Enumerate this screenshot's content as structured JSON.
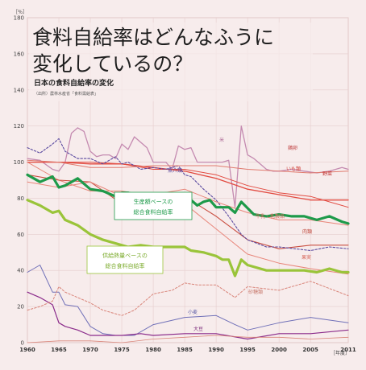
{
  "header": {
    "title_line1": "食料自給率はどんなふうに",
    "title_line2": "変化しているの？",
    "subtitle": "日本の食料自給率の変化",
    "source": "（出所）農林水産省「食料需給表」"
  },
  "chart_data": {
    "type": "line",
    "title": "日本の食料自給率の変化",
    "ylabel": "［％］",
    "xlabel": "［年度］",
    "ylim": [
      0,
      180
    ],
    "xlim": [
      1960,
      2011
    ],
    "y_ticks": [
      "0",
      "20",
      "40",
      "60",
      "80",
      "100",
      "120",
      "140",
      "160",
      "180"
    ],
    "x_ticks": [
      "1960",
      "1965",
      "1970",
      "1975",
      "1980",
      "1985",
      "1990",
      "1995",
      "2000",
      "2005",
      "2011"
    ],
    "series": [
      {
        "name": "米",
        "color": "#c48ab0",
        "style": "solid",
        "width": 1.3,
        "x": [
          1960,
          1962,
          1964,
          1965,
          1966,
          1967,
          1968,
          1969,
          1970,
          1971,
          1972,
          1973,
          1974,
          1975,
          1976,
          1977,
          1978,
          1979,
          1980,
          1981,
          1982,
          1983,
          1984,
          1985,
          1986,
          1987,
          1988,
          1989,
          1990,
          1991,
          1992,
          1993,
          1994,
          1995,
          1996,
          1997,
          1998,
          1999,
          2000,
          2002,
          2004,
          2006,
          2008,
          2010,
          2011
        ],
        "y": [
          102,
          101,
          96,
          95,
          100,
          116,
          119,
          117,
          106,
          103,
          104,
          104,
          102,
          110,
          107,
          114,
          111,
          108,
          100,
          100,
          100,
          96,
          109,
          107,
          108,
          100,
          100,
          100,
          100,
          100,
          101,
          75,
          120,
          104,
          102,
          99,
          96,
          95,
          95,
          96,
          95,
          94,
          95,
          97,
          96
        ]
      },
      {
        "name": "野菜",
        "color": "#e24a40",
        "style": "solid",
        "width": 1.3,
        "x": [
          1960,
          1965,
          1970,
          1975,
          1980,
          1985,
          1990,
          1995,
          2000,
          2005,
          2011
        ],
        "y": [
          100,
          100,
          99,
          99,
          97,
          95,
          91,
          85,
          82,
          79,
          79
        ]
      },
      {
        "name": "いも類",
        "color": "#e24a40",
        "style": "solid",
        "width": 1.0,
        "x": [
          1960,
          1965,
          1970,
          1975,
          1980,
          1985,
          1990,
          1995,
          2000,
          2005,
          2011
        ],
        "y": [
          100,
          100,
          100,
          99,
          96,
          96,
          93,
          87,
          83,
          81,
          75
        ]
      },
      {
        "name": "果実",
        "color": "#e88579",
        "style": "solid",
        "width": 1.0,
        "x": [
          1960,
          1965,
          1970,
          1975,
          1980,
          1985,
          1990,
          1995,
          2000,
          2005,
          2011
        ],
        "y": [
          100,
          90,
          84,
          84,
          81,
          77,
          63,
          49,
          44,
          41,
          38
        ]
      },
      {
        "name": "肉類",
        "color": "#c94e40",
        "style": "solid",
        "width": 1.1,
        "x": [
          1960,
          1965,
          1970,
          1975,
          1980,
          1985,
          1990,
          1995,
          2000,
          2005,
          2011
        ],
        "y": [
          93,
          90,
          89,
          77,
          80,
          81,
          70,
          57,
          52,
          54,
          54
        ]
      },
      {
        "name": "魚介類",
        "color": "#5a4aa0",
        "style": "dashed",
        "width": 1.1,
        "x": [
          1960,
          1962,
          1964,
          1965,
          1966,
          1968,
          1970,
          1972,
          1974,
          1975,
          1976,
          1978,
          1980,
          1982,
          1984,
          1985,
          1986,
          1988,
          1990,
          1992,
          1994,
          1995,
          1998,
          2000,
          2005,
          2008,
          2011
        ],
        "y": [
          108,
          105,
          110,
          113,
          106,
          102,
          102,
          99,
          103,
          99,
          100,
          96,
          97,
          96,
          98,
          93,
          92,
          85,
          79,
          70,
          60,
          57,
          53,
          53,
          51,
          53,
          52
        ]
      },
      {
        "name": "牛乳・乳製品",
        "color": "#e88579",
        "style": "solid",
        "width": 1.0,
        "x": [
          1960,
          1965,
          1970,
          1975,
          1980,
          1985,
          1990,
          1995,
          2000,
          2005,
          2011
        ],
        "y": [
          89,
          86,
          89,
          81,
          82,
          85,
          78,
          72,
          68,
          68,
          65
        ]
      },
      {
        "name": "鶏卵",
        "color": "#e07a6e",
        "style": "solid",
        "width": 1.0,
        "x": [
          1960,
          1965,
          1970,
          1975,
          1980,
          1985,
          1990,
          1995,
          2000,
          2005,
          2011
        ],
        "y": [
          101,
          100,
          97,
          97,
          98,
          98,
          98,
          96,
          95,
          94,
          95
        ]
      },
      {
        "name": "生産額ベースの総合食料自給率",
        "color": "#1e9a4a",
        "style": "solid",
        "width": 3.2,
        "x": [
          1960,
          1962,
          1964,
          1965,
          1966,
          1968,
          1970,
          1972,
          1974,
          1975,
          1976,
          1978,
          1980,
          1982,
          1984,
          1985,
          1987,
          1988,
          1989,
          1990,
          1991,
          1992,
          1993,
          1994,
          1996,
          1998,
          2000,
          2002,
          2004,
          2006,
          2008,
          2010,
          2011
        ],
        "y": [
          93,
          89,
          92,
          86,
          87,
          91,
          85,
          84,
          81,
          83,
          83,
          81,
          78,
          80,
          82,
          82,
          76,
          78,
          79,
          75,
          75,
          75,
          72,
          78,
          71,
          70,
          71,
          70,
          70,
          68,
          70,
          67,
          66
        ]
      },
      {
        "name": "供給熱量ベースの総合食料自給率",
        "color": "#9ac43a",
        "style": "solid",
        "width": 3.2,
        "x": [
          1960,
          1962,
          1964,
          1965,
          1966,
          1968,
          1970,
          1972,
          1974,
          1975,
          1976,
          1978,
          1980,
          1982,
          1984,
          1985,
          1986,
          1988,
          1990,
          1991,
          1992,
          1993,
          1994,
          1995,
          1998,
          2000,
          2004,
          2006,
          2008,
          2010,
          2011
        ],
        "y": [
          79,
          76,
          72,
          73,
          68,
          65,
          60,
          57,
          55,
          54,
          53,
          54,
          53,
          53,
          53,
          53,
          51,
          50,
          48,
          46,
          46,
          37,
          46,
          43,
          40,
          40,
          40,
          39,
          41,
          39,
          39
        ]
      },
      {
        "name": "小麦",
        "color": "#7070b8",
        "style": "solid",
        "width": 1.0,
        "x": [
          1960,
          1962,
          1964,
          1965,
          1966,
          1968,
          1970,
          1972,
          1974,
          1975,
          1977,
          1980,
          1985,
          1990,
          1993,
          1995,
          2000,
          2005,
          2011
        ],
        "y": [
          39,
          43,
          28,
          28,
          21,
          20,
          9,
          5,
          4,
          4,
          4,
          10,
          14,
          15,
          10,
          7,
          11,
          14,
          11
        ]
      },
      {
        "name": "大豆",
        "color": "#8a2a8a",
        "style": "solid",
        "width": 1.2,
        "x": [
          1960,
          1962,
          1964,
          1965,
          1966,
          1968,
          1970,
          1972,
          1974,
          1975,
          1978,
          1980,
          1985,
          1990,
          1995,
          2000,
          2005,
          2011
        ],
        "y": [
          28,
          25,
          21,
          11,
          9,
          7,
          4,
          4,
          4,
          4,
          5,
          4,
          5,
          5,
          2,
          5,
          5,
          7
        ]
      },
      {
        "name": "砂糖類",
        "color": "#d9857a",
        "style": "dashed",
        "width": 1.0,
        "x": [
          1960,
          1962,
          1964,
          1965,
          1966,
          1968,
          1970,
          1972,
          1974,
          1975,
          1977,
          1980,
          1983,
          1985,
          1987,
          1990,
          1993,
          1995,
          2000,
          2005,
          2011
        ],
        "y": [
          18,
          20,
          23,
          31,
          28,
          25,
          22,
          18,
          16,
          15,
          18,
          27,
          29,
          33,
          32,
          32,
          25,
          31,
          29,
          34,
          26
        ]
      },
      {
        "name": "",
        "color": "#d9857a",
        "style": "solid",
        "width": 0.8,
        "x": [
          1960,
          1965,
          1970,
          1975,
          1980,
          1985,
          1990,
          1995,
          2000,
          2005,
          2011
        ],
        "y": [
          0,
          1,
          1,
          0,
          2,
          3,
          4,
          3,
          3,
          2,
          3
        ]
      }
    ],
    "labels": {
      "rice": "米",
      "vegetables": "野菜",
      "potatoes": "いも類",
      "fruit": "果実",
      "meat": "肉類",
      "fish": "魚介類",
      "milk": "牛乳・乳製品",
      "eggs": "鶏卵",
      "production_box_line1": "生産額ベースの",
      "production_box_line2": "総合食料自給率",
      "calorie_box_line1": "供給熱量ベースの",
      "calorie_box_line2": "総合食料自給率",
      "wheat": "小麦",
      "soybean": "大豆",
      "sugar": "砂糖類"
    }
  }
}
